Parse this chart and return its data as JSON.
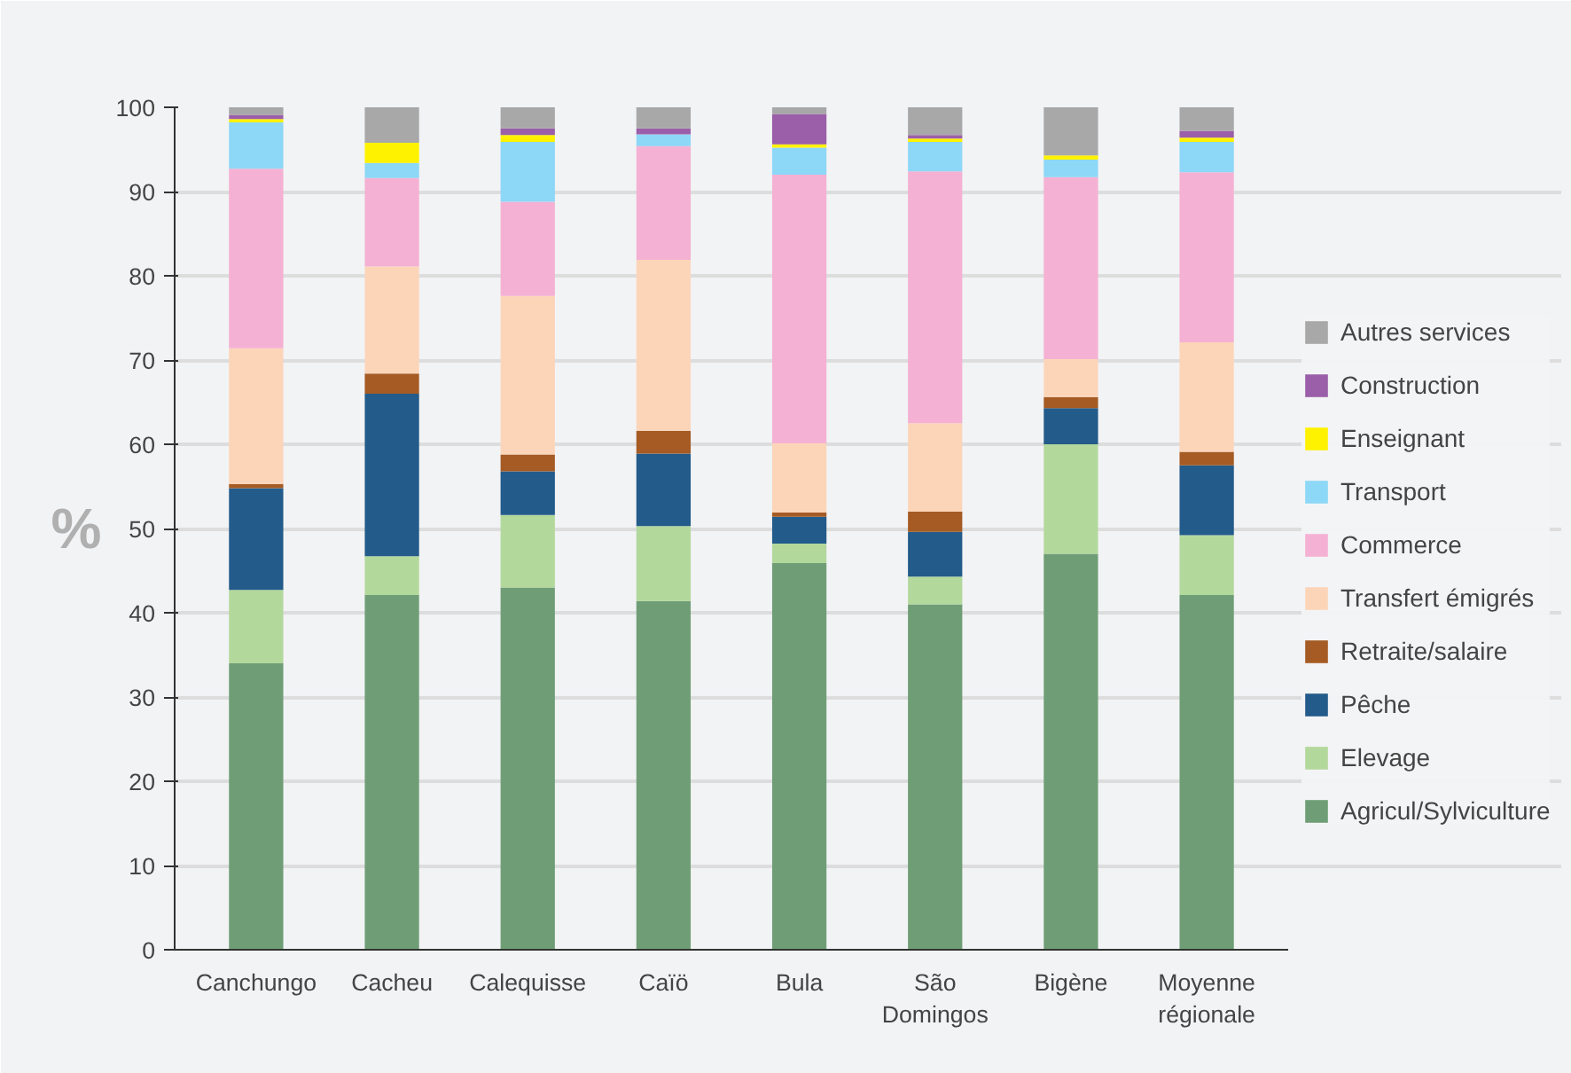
{
  "chart_data": {
    "type": "bar",
    "stacked": true,
    "ylabel": "%",
    "categories": [
      "Canchungo",
      "Cacheu",
      "Calequisse",
      "Caïö",
      "Bula",
      "São\nDomingos",
      "Bigène",
      "Moyenne\nrégionale"
    ],
    "ylim": [
      0,
      100
    ],
    "yticks": [
      0,
      10,
      20,
      30,
      40,
      50,
      60,
      70,
      80,
      90,
      100
    ],
    "grid": "y",
    "legend": "right",
    "series": [
      {
        "name": "Agricul/Sylviculture",
        "color": "#6f9e76",
        "values": [
          34,
          42.1,
          43,
          41.4,
          45.9,
          41,
          47,
          42.1
        ]
      },
      {
        "name": "Elevage",
        "color": "#b3d89c",
        "values": [
          8.7,
          4.6,
          8.6,
          8.9,
          2.3,
          3.3,
          13,
          7.1
        ]
      },
      {
        "name": "Pêche",
        "color": "#235b8a",
        "values": [
          12.1,
          19.3,
          5.2,
          8.6,
          3.2,
          5.3,
          4.3,
          8.3
        ]
      },
      {
        "name": "Retraite/salaire",
        "color": "#a55b23",
        "values": [
          0.5,
          2.4,
          2,
          2.7,
          0.5,
          2.4,
          1.3,
          1.6
        ]
      },
      {
        "name": "Transfert émigrés",
        "color": "#fcd5b9",
        "values": [
          16.1,
          12.7,
          18.8,
          20.3,
          8.2,
          10.5,
          4.5,
          13
        ]
      },
      {
        "name": "Commerce",
        "color": "#f5b1d3",
        "values": [
          21.3,
          10.5,
          11.2,
          13.5,
          31.9,
          29.9,
          21.6,
          20.2
        ]
      },
      {
        "name": "Transport",
        "color": "#8dd7f7",
        "values": [
          5.5,
          1.8,
          7.1,
          1.4,
          3.2,
          3.5,
          2.1,
          3.6
        ]
      },
      {
        "name": "Enseignant",
        "color": "#fff200",
        "values": [
          0.4,
          2.4,
          0.8,
          0,
          0.4,
          0.4,
          0.5,
          0.5
        ]
      },
      {
        "name": "Construction",
        "color": "#9a5fa8",
        "values": [
          0.5,
          0,
          0.8,
          0.7,
          3.6,
          0.4,
          0,
          0.8
        ]
      },
      {
        "name": "Autres services",
        "color": "#a8a8a8",
        "values": [
          0.9,
          4.2,
          2.5,
          2.5,
          0.8,
          3.3,
          5.7,
          2.8
        ]
      }
    ]
  }
}
